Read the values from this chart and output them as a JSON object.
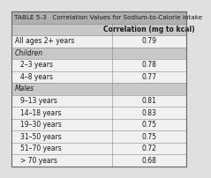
{
  "title": "TABLE 5-3   Correlation Values for Sodium-to-Calorie Intake",
  "col_header": "Correlation (mg to kcal)",
  "rows": [
    {
      "label": "All ages 2+ years",
      "value": "0.79",
      "italic": false,
      "indent": false
    },
    {
      "label": "Children",
      "value": "",
      "italic": true,
      "indent": false
    },
    {
      "label": "2–3 years",
      "value": "0.78",
      "italic": false,
      "indent": true
    },
    {
      "label": "4–8 years",
      "value": "0.77",
      "italic": false,
      "indent": true
    },
    {
      "label": "Males",
      "value": "",
      "italic": true,
      "indent": false
    },
    {
      "label": "9–13 years",
      "value": "0.81",
      "italic": false,
      "indent": true
    },
    {
      "label": "14–18 years",
      "value": "0.83",
      "italic": false,
      "indent": true
    },
    {
      "label": "19–30 years",
      "value": "0.75",
      "italic": false,
      "indent": true
    },
    {
      "label": "31–50 years",
      "value": "0.75",
      "italic": false,
      "indent": true
    },
    {
      "label": "51–70 years",
      "value": "0.72",
      "italic": false,
      "indent": true
    },
    {
      "label": "> 70 years",
      "value": "0.68",
      "italic": false,
      "indent": true
    }
  ],
  "title_bg": "#b0b0b0",
  "header_bg": "#c8c8c8",
  "italic_row_bg": "#c8c8c8",
  "normal_row_bg": "#f0f0f0",
  "outer_bg": "#e0e0e0",
  "border_color": "#888888",
  "text_color": "#1a1a1a",
  "title_fontsize": 5.2,
  "header_fontsize": 5.5,
  "cell_fontsize": 5.5,
  "col_split": 0.575
}
